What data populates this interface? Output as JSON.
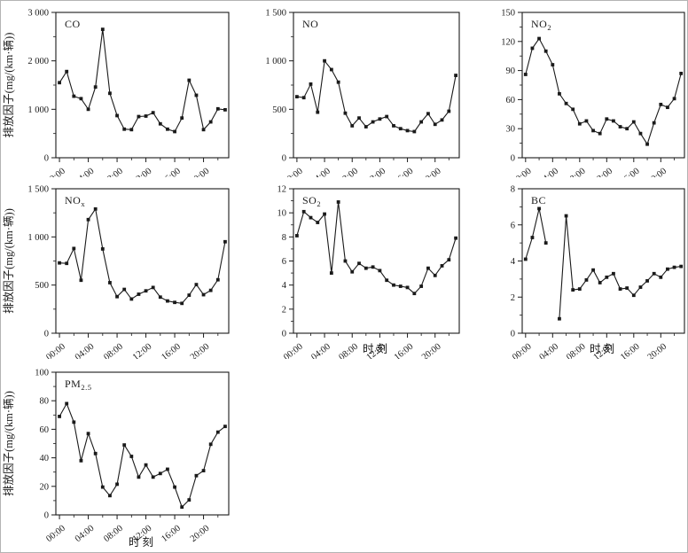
{
  "figure": {
    "y_axis_label": "排放因子(mg/(km·辆))",
    "x_axis_label": "时刻",
    "line_color": "#1a1a1a",
    "background": "#ffffff"
  },
  "x_axis": {
    "hours": [
      0,
      1,
      2,
      3,
      4,
      5,
      6,
      7,
      8,
      9,
      10,
      11,
      12,
      13,
      14,
      15,
      16,
      17,
      18,
      19,
      20,
      21,
      22,
      23
    ],
    "major_tick_hours": [
      0,
      4,
      8,
      12,
      16,
      20
    ],
    "major_tick_labels": [
      "00:00",
      "04:00",
      "08:00",
      "12:00",
      "16:00",
      "20:00"
    ],
    "minor_tick_hours": [
      2,
      6,
      10,
      14,
      18,
      22
    ],
    "xlim": [
      -0.5,
      23.5
    ]
  },
  "chart_data": [
    {
      "type": "line",
      "id": "co",
      "title_main": "CO",
      "title_sub": "",
      "ylim": [
        0,
        3000
      ],
      "y_tick_values": [
        0,
        1000,
        2000,
        3000
      ],
      "y_tick_labels": [
        "0",
        "1 000",
        "2 000",
        "3 000"
      ],
      "values": [
        1550,
        1780,
        1270,
        1220,
        1000,
        1460,
        2650,
        1330,
        870,
        590,
        580,
        850,
        860,
        930,
        700,
        590,
        540,
        820,
        1600,
        1290,
        580,
        740,
        1010,
        990
      ],
      "show_y_axis_label": true,
      "show_x_axis_label": false,
      "row": 0,
      "col": 0
    },
    {
      "type": "line",
      "id": "no",
      "title_main": "NO",
      "title_sub": "",
      "ylim": [
        0,
        1500
      ],
      "y_tick_values": [
        0,
        500,
        1000,
        1500
      ],
      "y_tick_labels": [
        "0",
        "500",
        "1 000",
        "1 500"
      ],
      "values": [
        630,
        620,
        760,
        470,
        1000,
        910,
        780,
        460,
        330,
        410,
        320,
        370,
        400,
        425,
        330,
        300,
        280,
        270,
        370,
        455,
        345,
        390,
        480,
        850
      ],
      "show_y_axis_label": false,
      "show_x_axis_label": false,
      "row": 0,
      "col": 1
    },
    {
      "type": "line",
      "id": "no2",
      "title_main": "NO",
      "title_sub": "2",
      "ylim": [
        0,
        150
      ],
      "y_tick_values": [
        0,
        30,
        60,
        90,
        120,
        150
      ],
      "y_tick_labels": [
        "0",
        "30",
        "60",
        "90",
        "120",
        "150"
      ],
      "values": [
        86,
        113,
        123,
        110,
        96,
        66,
        56,
        50,
        35,
        38,
        28,
        25,
        40,
        38,
        32,
        30,
        37,
        25,
        14,
        36,
        55,
        52,
        61,
        87
      ],
      "show_y_axis_label": false,
      "show_x_axis_label": false,
      "row": 0,
      "col": 2
    },
    {
      "type": "line",
      "id": "nox",
      "title_main": "NO",
      "title_sub": "x",
      "ylim": [
        0,
        1500
      ],
      "y_tick_values": [
        0,
        500,
        1000,
        1500
      ],
      "y_tick_labels": [
        "0",
        "500",
        "1 000",
        "1 500"
      ],
      "values": [
        730,
        725,
        880,
        550,
        1180,
        1290,
        875,
        525,
        380,
        455,
        355,
        405,
        440,
        475,
        375,
        335,
        320,
        310,
        395,
        505,
        400,
        445,
        555,
        950
      ],
      "show_y_axis_label": true,
      "show_x_axis_label": false,
      "row": 1,
      "col": 0
    },
    {
      "type": "line",
      "id": "so2",
      "title_main": "SO",
      "title_sub": "2",
      "ylim": [
        0,
        12
      ],
      "y_tick_values": [
        0,
        2,
        4,
        6,
        8,
        10,
        12
      ],
      "y_tick_labels": [
        "0",
        "2",
        "4",
        "6",
        "8",
        "10",
        "12"
      ],
      "values": [
        8.1,
        10.1,
        9.6,
        9.2,
        9.9,
        5.0,
        10.9,
        6.0,
        5.1,
        5.8,
        5.4,
        5.5,
        5.2,
        4.4,
        4.0,
        3.9,
        3.8,
        3.3,
        3.9,
        5.4,
        4.8,
        5.6,
        6.1,
        7.9
      ],
      "show_y_axis_label": false,
      "show_x_axis_label": true,
      "row": 1,
      "col": 1
    },
    {
      "type": "line",
      "id": "bc",
      "title_main": "BC",
      "title_sub": "",
      "ylim": [
        0,
        8
      ],
      "y_tick_values": [
        0,
        2,
        4,
        6,
        8
      ],
      "y_tick_labels": [
        "0",
        "2",
        "4",
        "6",
        "8"
      ],
      "values": [
        4.1,
        5.3,
        6.9,
        5.0,
        null,
        0.8,
        6.5,
        2.4,
        2.45,
        2.95,
        3.5,
        2.8,
        3.1,
        3.3,
        2.45,
        2.5,
        2.1,
        2.55,
        2.9,
        3.3,
        3.1,
        3.55,
        3.65,
        3.7
      ],
      "show_y_axis_label": false,
      "show_x_axis_label": true,
      "row": 1,
      "col": 2
    },
    {
      "type": "line",
      "id": "pm25",
      "title_main": "PM",
      "title_sub": "2.5",
      "ylim": [
        0,
        100
      ],
      "y_tick_values": [
        0,
        20,
        40,
        60,
        80,
        100
      ],
      "y_tick_labels": [
        "0",
        "20",
        "40",
        "60",
        "80",
        "100"
      ],
      "values": [
        69,
        78,
        65,
        38,
        57,
        43,
        19.5,
        13.5,
        21.5,
        49,
        41,
        26.5,
        35,
        26.5,
        29,
        32,
        19.5,
        5.5,
        10.5,
        27.5,
        31,
        49.5,
        58,
        62
      ],
      "show_y_axis_label": true,
      "show_x_axis_label": true,
      "row": 2,
      "col": 0
    }
  ]
}
